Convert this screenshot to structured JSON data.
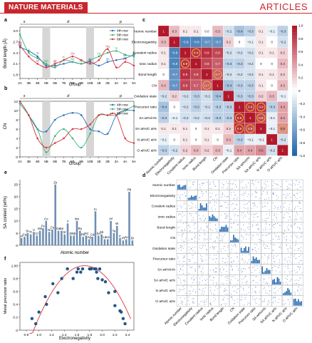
{
  "header": {
    "journal": "NATURE MATERIALS",
    "section": "ARTICLES"
  },
  "panels": {
    "a": {
      "letter": "a",
      "ylabel": "Bond length (Å)",
      "xlabel": "Group",
      "groups": [
        "2A",
        "3B",
        "4B",
        "5B",
        "6B",
        "7B",
        "8B",
        "9B",
        "10B",
        "1B",
        "2B",
        "3A",
        "4A",
        "5A"
      ],
      "yticks": [
        "1.8",
        "2.1",
        "2.4",
        "2.7",
        "3.0"
      ],
      "blocks": [
        "s",
        "d",
        "p"
      ],
      "legend": [
        "4th row",
        "5th row",
        "6th row"
      ]
    },
    "b": {
      "letter": "b",
      "ylabel": "CN",
      "xlabel": "Group",
      "groups": [
        "2A",
        "3B",
        "4B",
        "5B",
        "6B",
        "7B",
        "8B",
        "9B",
        "10B",
        "1B",
        "2B",
        "3A",
        "4A",
        "5A"
      ],
      "yticks": [
        "0",
        "2",
        "4",
        "6",
        "8",
        "10",
        "12"
      ],
      "blocks": [
        "s",
        "d",
        "p"
      ],
      "legend": [
        "4th row",
        "5th row",
        "6th row"
      ]
    },
    "c": {
      "letter": "c",
      "labels": [
        "Atomic number",
        "Electronegativity",
        "Covalent radius",
        "Ionic radius",
        "Bond length",
        "CN",
        "Oxidation state",
        "Precursor ratio",
        "SA wt%/n%",
        "SA at%/C at%",
        "N at%/C at%",
        "O at%/C at%"
      ],
      "colorbar_ticks": [
        "1.0",
        "0.8",
        "0.6",
        "0.4",
        "0.2",
        "0",
        "−0.2",
        "−0.4",
        "−0.6",
        "−0.8",
        "−1.0"
      ],
      "matrix": [
        [
          "1",
          "0.3",
          "0.1",
          "0.1",
          "0.0",
          "0.3",
          "−0.2",
          "−0.4",
          "−0.3",
          "0.1",
          "−0.1",
          "−0.3"
        ],
        [
          "0.3",
          "1",
          "−0.8",
          "−0.8",
          "−0.7",
          "−0.7",
          "0.2",
          "0",
          "−0.1",
          "0.1",
          "0",
          "−0.2"
        ],
        [
          "0.1",
          "−0.8",
          "1",
          "0.9",
          "0.9",
          "0.8",
          "−0.2",
          "−0.2",
          "−0.2",
          "0.1",
          "0.1",
          "0.2"
        ],
        [
          "0.1",
          "−0.8",
          "0.9",
          "1",
          "0.8",
          "0.7",
          "−0.3",
          "−0.3",
          "−0.2",
          "0",
          "0",
          "0.3"
        ],
        [
          "0",
          "−0.7",
          "0.9",
          "0.8",
          "1",
          "0.7",
          "−0.2",
          "−0.2",
          "−0.2",
          "0.1",
          "0.1",
          "0.2"
        ],
        [
          "0.3",
          "−0.7",
          "0.8",
          "0.7",
          "0.7",
          "1",
          "−0.4",
          "−0.3",
          "−0.3",
          "0.1",
          "0",
          "0.3"
        ],
        [
          "−0.2",
          "0.2",
          "−0.2",
          "−0.3",
          "−0.2",
          "−0.4",
          "1",
          "−0.3",
          "−0.3",
          "0.2",
          "0.3",
          "−0.1"
        ],
        [
          "−0.4",
          "0",
          "−0.2",
          "−0.3",
          "−0.2",
          "−0.3",
          "−0.3",
          "1",
          "0.9",
          "0.9",
          "−0.3",
          "0.4"
        ],
        [
          "−0.3",
          "−0.1",
          "−0.2",
          "−0.2",
          "−0.2",
          "−0.3",
          "−0.3",
          "0.9",
          "1",
          "0.8",
          "−0.1",
          "0.4"
        ],
        [
          "0.1",
          "0.1",
          "0.1",
          "0",
          "0.1",
          "0.1",
          "0.2",
          "0.9",
          "0.8",
          "1",
          "−0.1",
          "0.5"
        ],
        [
          "−0.1",
          "0",
          "0.1",
          "0",
          "0.1",
          "0",
          "0.3",
          "−0.3",
          "−0.1",
          "−0.1",
          "1",
          "−0.2"
        ],
        [
          "−0.3",
          "−0.2",
          "0.2",
          "0.3",
          "0.2",
          "0.3",
          "−0.1",
          "0.4",
          "0.4",
          "0.5",
          "−0.2",
          "1"
        ]
      ]
    },
    "d": {
      "letter": "d",
      "labels": [
        "Atomic number",
        "Electronegativity",
        "Covalent radius",
        "Ionic radius",
        "Bond length",
        "CN",
        "Oxidation state",
        "Precursor ratio",
        "SA wt%/n%",
        "SA at%/C at%",
        "N at%/C at%",
        "O at%/C at%"
      ]
    },
    "e": {
      "letter": "e",
      "ylabel": "SA content (wt%)",
      "xlabel": "Atomic number",
      "yticks": [
        "0",
        "5",
        "10",
        "15",
        "20",
        "25"
      ]
    },
    "f": {
      "letter": "f",
      "ylabel": "Metal precursor ratio",
      "xlabel": "Electronegativity",
      "xticks": [
        "0.8",
        "1.0",
        "1.2",
        "1.4",
        "1.6",
        "1.8",
        "2.0",
        "2.2",
        "2.4"
      ],
      "yticks": [
        "0",
        "0.2",
        "0.4",
        "0.6",
        "0.8",
        "1.00"
      ]
    }
  },
  "chart_data": [
    {
      "type": "line",
      "panel": "a",
      "title": "",
      "xlabel": "Group",
      "ylabel": "Bond length (Å)",
      "categories": [
        "2A",
        "3B",
        "4B",
        "5B",
        "6B",
        "7B",
        "8B",
        "9B",
        "10B",
        "1B",
        "2B",
        "3A",
        "4A",
        "5A"
      ],
      "ylim": [
        1.7,
        3.1
      ],
      "series": [
        {
          "name": "4th row",
          "values": [
            2.55,
            2.45,
            2.3,
            2.05,
            2.05,
            2.1,
            2.15,
            2.1,
            2.15,
            2.05,
            2.15,
            2.2,
            2.25,
            2.35
          ],
          "labels": [
            "Ca",
            "Sc",
            "Ti",
            "V",
            "Cr",
            "Mn",
            "Fe",
            "Co",
            "Ni",
            "Cu",
            "Zn",
            "Ga",
            "Ge",
            "As"
          ]
        },
        {
          "name": "5th row",
          "values": [
            2.9,
            2.4,
            2.25,
            2.1,
            2.0,
            2.2,
            2.15,
            2.1,
            2.2,
            2.3,
            2.4,
            2.45,
            2.35,
            2.3
          ],
          "labels": [
            "Sr",
            "Y",
            "Zr",
            "Nb",
            "Mo",
            "Tc",
            "Ru",
            "Rh",
            "Pd",
            "Ag",
            "Cd",
            "In",
            "Sn",
            "Sb"
          ]
        },
        {
          "name": "6th row",
          "values": [
            2.6,
            2.3,
            2.1,
            2.0,
            2.1,
            2.2,
            2.3,
            2.2,
            2.1,
            2.2,
            2.5,
            2.0,
            2.15,
            2.05
          ],
          "labels": [
            "Ba",
            "La",
            "Hf",
            "Ta",
            "W",
            "Re",
            "Os",
            "Ir",
            "Pt",
            "Au",
            "Hg",
            "Tl",
            "Pb",
            "Bi"
          ]
        }
      ]
    },
    {
      "type": "line",
      "panel": "b",
      "title": "",
      "xlabel": "Group",
      "ylabel": "CN",
      "categories": [
        "2A",
        "3B",
        "4B",
        "5B",
        "6B",
        "7B",
        "8B",
        "9B",
        "10B",
        "1B",
        "2B",
        "3A",
        "4A",
        "5A"
      ],
      "ylim": [
        0,
        12
      ],
      "series": [
        {
          "name": "4th row",
          "values": [
            11.5,
            9,
            6,
            5.5,
            8,
            9,
            9.5,
            9,
            6,
            5.5,
            5,
            9,
            10,
            10
          ]
        },
        {
          "name": "5th row",
          "values": [
            11.5,
            9,
            6,
            1,
            4.5,
            6,
            4,
            2,
            5,
            9,
            9,
            9,
            10,
            11
          ]
        },
        {
          "name": "6th row",
          "values": [
            12,
            9,
            4,
            2,
            3,
            4,
            6,
            6,
            7,
            9,
            9,
            9,
            4,
            3
          ]
        }
      ]
    },
    {
      "type": "bar",
      "panel": "e",
      "title": "",
      "xlabel": "Atomic number",
      "ylabel": "SA content (wt%)",
      "ylim": [
        0,
        27
      ],
      "categories": [
        "Al",
        "Ca",
        "Sc",
        "Ti",
        "V",
        "Cr",
        "Mn",
        "Fe",
        "Co",
        "Ni",
        "Cu",
        "Zn",
        "Ga",
        "Ge",
        "Sr",
        "Y",
        "Zr",
        "Nb",
        "Mo",
        "Ru",
        "Rh",
        "Pd",
        "Ag",
        "Cd",
        "In",
        "Sn",
        "Sb",
        "La",
        "Ce",
        "Hf",
        "Ta",
        "W",
        "Ir",
        "Pt",
        "Au",
        "Pb",
        "Bi"
      ],
      "values": [
        3,
        3.5,
        5,
        4.5,
        5.5,
        4,
        6,
        7,
        10,
        5.5,
        6.5,
        25,
        6,
        6,
        4.5,
        9,
        4,
        4,
        10,
        6,
        3.5,
        4,
        2.5,
        3.5,
        14,
        4,
        4.5,
        2.5,
        2.5,
        10,
        5,
        8,
        3,
        2,
        2.5,
        22,
        2
      ]
    },
    {
      "type": "scatter",
      "panel": "f",
      "title": "",
      "xlabel": "Electronegativity",
      "ylabel": "Metal precursor ratio",
      "xlim": [
        0.7,
        2.5
      ],
      "ylim": [
        0,
        1.05
      ],
      "x": [
        0.89,
        0.95,
        1.0,
        1.1,
        1.12,
        1.22,
        1.3,
        1.36,
        1.45,
        1.54,
        1.6,
        1.62,
        1.66,
        1.69,
        1.8,
        1.81,
        1.83,
        1.88,
        1.9,
        1.91,
        1.93,
        1.96,
        2.0,
        2.05,
        2.1,
        2.2,
        2.2,
        2.28,
        2.3,
        2.33,
        2.36
      ],
      "y": [
        0.18,
        0.1,
        0.28,
        0.52,
        0.4,
        0.72,
        0.58,
        0.8,
        0.95,
        0.8,
        0.9,
        0.95,
        0.9,
        0.95,
        0.95,
        0.95,
        0.95,
        0.95,
        0.95,
        0.9,
        0.8,
        0.95,
        0.78,
        0.75,
        0.58,
        0.6,
        0.38,
        0.3,
        0.28,
        0.18,
        0.1
      ]
    }
  ]
}
